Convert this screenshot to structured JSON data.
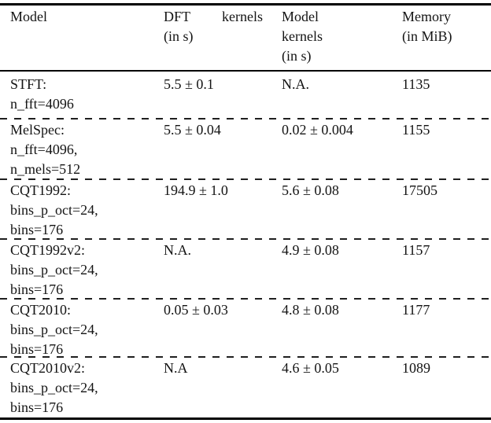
{
  "colors": {
    "background": "#ffffff",
    "text": "#141414",
    "rule": "#000000",
    "dash": "#1f1f1f"
  },
  "header": {
    "model": "Model",
    "dft_kernels_word1": "DFT",
    "dft_kernels_word2": "kernels",
    "dft_kernels_unit": "(in s)",
    "model_kernels_line1": "Model",
    "model_kernels_line2": "kernels",
    "model_kernels_unit": "(in s)",
    "memory": "Memory",
    "memory_unit": "(in MiB)"
  },
  "rows": [
    {
      "model_lines": [
        "STFT:",
        "n_fft=4096"
      ],
      "dft_kernels": "5.5 ± 0.1",
      "model_kernels": "N.A.",
      "memory": "1135"
    },
    {
      "model_lines": [
        "MelSpec:",
        "n_fft=4096,",
        "n_mels=512"
      ],
      "dft_kernels": "5.5 ± 0.04",
      "model_kernels": "0.02 ± 0.004",
      "memory": "1155"
    },
    {
      "model_lines": [
        "CQT1992:",
        "bins_p_oct=24,",
        "bins=176"
      ],
      "dft_kernels": "194.9 ± 1.0",
      "model_kernels": "5.6 ± 0.08",
      "memory": "17505"
    },
    {
      "model_lines": [
        "CQT1992v2:",
        "bins_p_oct=24,",
        "bins=176"
      ],
      "dft_kernels": "N.A.",
      "model_kernels": "4.9 ± 0.08",
      "memory": "1157"
    },
    {
      "model_lines": [
        "CQT2010:",
        "bins_p_oct=24,",
        "bins=176"
      ],
      "dft_kernels": "0.05 ± 0.03",
      "model_kernels": "4.8 ± 0.08",
      "memory": "1177"
    },
    {
      "model_lines": [
        "CQT2010v2:",
        "bins_p_oct=24,",
        "bins=176"
      ],
      "dft_kernels": "N.A",
      "model_kernels": "4.6 ± 0.05",
      "memory": "1089"
    }
  ]
}
